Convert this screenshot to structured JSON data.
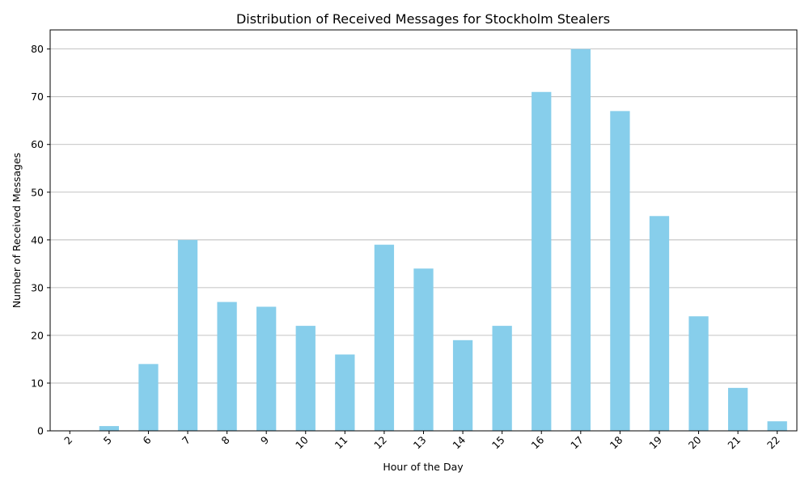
{
  "chart_data": {
    "type": "bar",
    "title": "Distribution of Received Messages for Stockholm Stealers",
    "xlabel": "Hour of the Day",
    "ylabel": "Number of Received Messages",
    "categories": [
      "2",
      "5",
      "6",
      "7",
      "8",
      "9",
      "10",
      "11",
      "12",
      "13",
      "14",
      "15",
      "16",
      "17",
      "18",
      "19",
      "20",
      "21",
      "22"
    ],
    "values": [
      0,
      1,
      14,
      40,
      27,
      26,
      22,
      16,
      39,
      34,
      19,
      22,
      71,
      80,
      67,
      45,
      24,
      9,
      2
    ],
    "ylim": [
      0,
      84
    ],
    "yticks": [
      0,
      10,
      20,
      30,
      40,
      50,
      60,
      70,
      80
    ],
    "grid": "y",
    "bar_color": "#87ceeb",
    "xtick_rotation": 45
  }
}
